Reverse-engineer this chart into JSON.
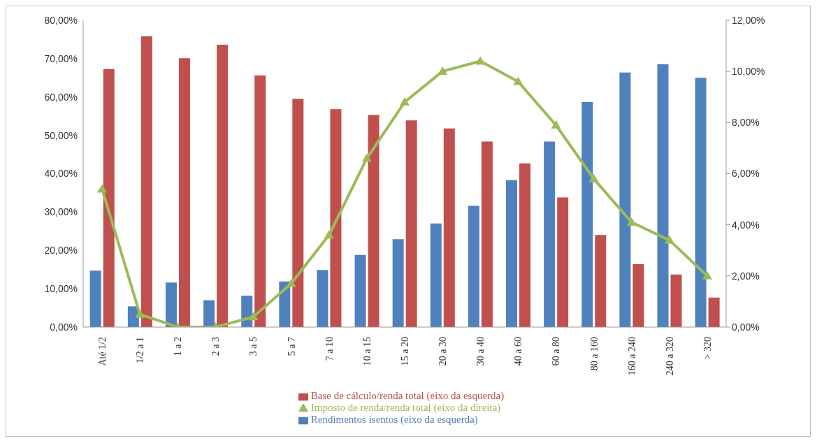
{
  "chart_data": {
    "type": "bar",
    "categories": [
      "Até 1/2",
      "1/2 a 1",
      "1 a 2",
      "2 a 3",
      "3 a 5",
      "5 a 7",
      "7 a 10",
      "10 a 15",
      "15 a 20",
      "20 a 30",
      "30 a 40",
      "40 a 60",
      "60 a 80",
      "80 a 160",
      "160 a 240",
      "240 a 320",
      "> 320"
    ],
    "series": [
      {
        "name": "Rendimentos isentos (eixo da esquerda)",
        "color": "#4f81bd",
        "values": [
          14.7,
          5.4,
          11.6,
          7.0,
          8.2,
          11.9,
          14.9,
          18.8,
          22.9,
          27.0,
          31.6,
          38.3,
          48.4,
          58.7,
          66.4,
          68.5,
          65.0
        ]
      },
      {
        "name": "Base de cálculo/renda total (eixo da esquerda)",
        "color": "#c0504d",
        "values": [
          67.3,
          75.8,
          70.1,
          73.6,
          65.6,
          59.5,
          56.8,
          55.3,
          53.9,
          51.8,
          48.4,
          42.7,
          33.8,
          24.0,
          16.4,
          13.7,
          7.7
        ]
      },
      {
        "name": "Imposto de renda/renda total (eixo da direita)",
        "color": "#9bbb59",
        "type": "line",
        "axis": "y2",
        "values": [
          5.4,
          0.5,
          0.0,
          0.0,
          0.4,
          1.7,
          3.6,
          6.6,
          8.8,
          10.0,
          10.4,
          9.6,
          7.9,
          5.8,
          4.1,
          3.4,
          2.0
        ]
      }
    ],
    "ylim": [
      0,
      80
    ],
    "yticks": [
      {
        "value": 0,
        "label": "0,00%"
      },
      {
        "value": 10,
        "label": "10,00%"
      },
      {
        "value": 20,
        "label": "20,00%"
      },
      {
        "value": 30,
        "label": "30,00%"
      },
      {
        "value": 40,
        "label": "40,00%"
      },
      {
        "value": 50,
        "label": "50,00%"
      },
      {
        "value": 60,
        "label": "60,00%"
      },
      {
        "value": 70,
        "label": "70,00%"
      },
      {
        "value": 80,
        "label": "80,00%"
      }
    ],
    "y2lim": [
      0,
      12
    ],
    "y2ticks": [
      {
        "value": 0,
        "label": "0,00%"
      },
      {
        "value": 2,
        "label": "2,00%"
      },
      {
        "value": 4,
        "label": "4,00%"
      },
      {
        "value": 6,
        "label": "6,00%"
      },
      {
        "value": 8,
        "label": "8,00%"
      },
      {
        "value": 10,
        "label": "10,00%"
      },
      {
        "value": 12,
        "label": "12,00%"
      }
    ],
    "grid": false,
    "legend": "bottom",
    "marker": "triangle",
    "line_style": "solid"
  }
}
